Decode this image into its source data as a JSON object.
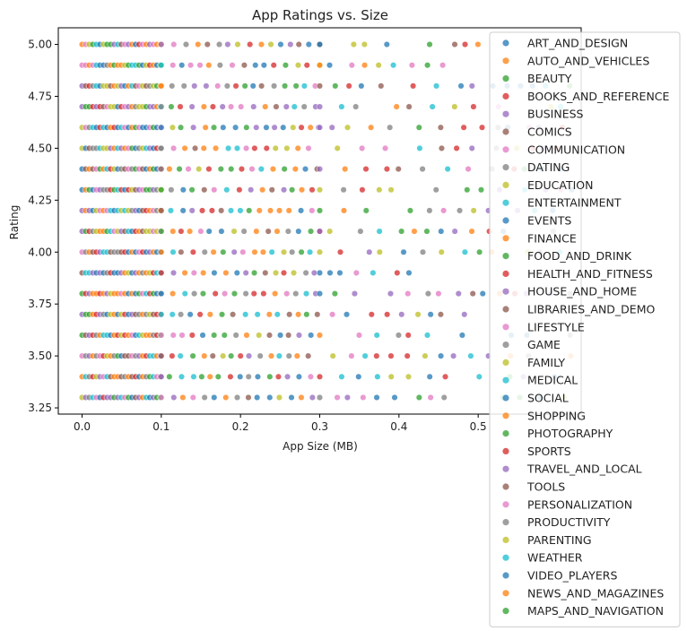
{
  "chart_data": {
    "type": "scatter",
    "title": "App Ratings vs. Size",
    "xlabel": "App Size (MB)",
    "ylabel": "Rating",
    "xlim": [
      -0.03,
      0.63
    ],
    "ylim": [
      3.22,
      5.08
    ],
    "xticks": [
      0.0,
      0.1,
      0.2,
      0.3,
      0.4,
      0.5
    ],
    "xtick_labels": [
      "0.0",
      "0.1",
      "0.2",
      "0.3",
      "0.4",
      "0.5"
    ],
    "yticks": [
      3.25,
      3.5,
      3.75,
      4.0,
      4.25,
      4.5,
      4.75,
      5.0
    ],
    "ytick_labels": [
      "3.25",
      "3.50",
      "3.75",
      "4.00",
      "4.25",
      "4.50",
      "4.75",
      "5.00"
    ],
    "grid": false,
    "legend_position": "right",
    "marker_alpha": 0.75,
    "rating_levels": [
      5.0,
      4.9,
      4.8,
      4.7,
      4.6,
      4.5,
      4.4,
      4.3,
      4.2,
      4.1,
      4.0,
      3.9,
      3.8,
      3.7,
      3.6,
      3.5,
      3.4,
      3.3
    ],
    "row_extent": {
      "5.0": 0.52,
      "4.9": 0.46,
      "4.8": 0.62,
      "4.7": 0.62,
      "4.6": 0.62,
      "4.5": 0.62,
      "4.4": 0.62,
      "4.3": 0.62,
      "4.2": 0.62,
      "4.1": 0.62,
      "4.0": 0.62,
      "3.9": 0.49,
      "3.8": 0.62,
      "3.7": 0.49,
      "3.6": 0.62,
      "3.5": 0.62,
      "3.4": 0.62,
      "3.3": 0.62
    },
    "series": [
      {
        "name": "ART_AND_DESIGN",
        "color": "#1f77b4"
      },
      {
        "name": "AUTO_AND_VEHICLES",
        "color": "#ff7f0e"
      },
      {
        "name": "BEAUTY",
        "color": "#2ca02c"
      },
      {
        "name": "BOOKS_AND_REFERENCE",
        "color": "#d62728"
      },
      {
        "name": "BUSINESS",
        "color": "#9467bd"
      },
      {
        "name": "COMICS",
        "color": "#8c564b"
      },
      {
        "name": "COMMUNICATION",
        "color": "#e377c2"
      },
      {
        "name": "DATING",
        "color": "#7f7f7f"
      },
      {
        "name": "EDUCATION",
        "color": "#bcbd22"
      },
      {
        "name": "ENTERTAINMENT",
        "color": "#17becf"
      },
      {
        "name": "EVENTS",
        "color": "#1f77b4"
      },
      {
        "name": "FINANCE",
        "color": "#ff7f0e"
      },
      {
        "name": "FOOD_AND_DRINK",
        "color": "#2ca02c"
      },
      {
        "name": "HEALTH_AND_FITNESS",
        "color": "#d62728"
      },
      {
        "name": "HOUSE_AND_HOME",
        "color": "#9467bd"
      },
      {
        "name": "LIBRARIES_AND_DEMO",
        "color": "#8c564b"
      },
      {
        "name": "LIFESTYLE",
        "color": "#e377c2"
      },
      {
        "name": "GAME",
        "color": "#7f7f7f"
      },
      {
        "name": "FAMILY",
        "color": "#bcbd22"
      },
      {
        "name": "MEDICAL",
        "color": "#17becf"
      },
      {
        "name": "SOCIAL",
        "color": "#1f77b4"
      },
      {
        "name": "SHOPPING",
        "color": "#ff7f0e"
      },
      {
        "name": "PHOTOGRAPHY",
        "color": "#2ca02c"
      },
      {
        "name": "SPORTS",
        "color": "#d62728"
      },
      {
        "name": "TRAVEL_AND_LOCAL",
        "color": "#9467bd"
      },
      {
        "name": "TOOLS",
        "color": "#8c564b"
      },
      {
        "name": "PERSONALIZATION",
        "color": "#e377c2"
      },
      {
        "name": "PRODUCTIVITY",
        "color": "#7f7f7f"
      },
      {
        "name": "PARENTING",
        "color": "#bcbd22"
      },
      {
        "name": "WEATHER",
        "color": "#17becf"
      },
      {
        "name": "VIDEO_PLAYERS",
        "color": "#1f77b4"
      },
      {
        "name": "NEWS_AND_MAGAZINES",
        "color": "#ff7f0e"
      },
      {
        "name": "MAPS_AND_NAVIGATION",
        "color": "#2ca02c"
      }
    ]
  }
}
